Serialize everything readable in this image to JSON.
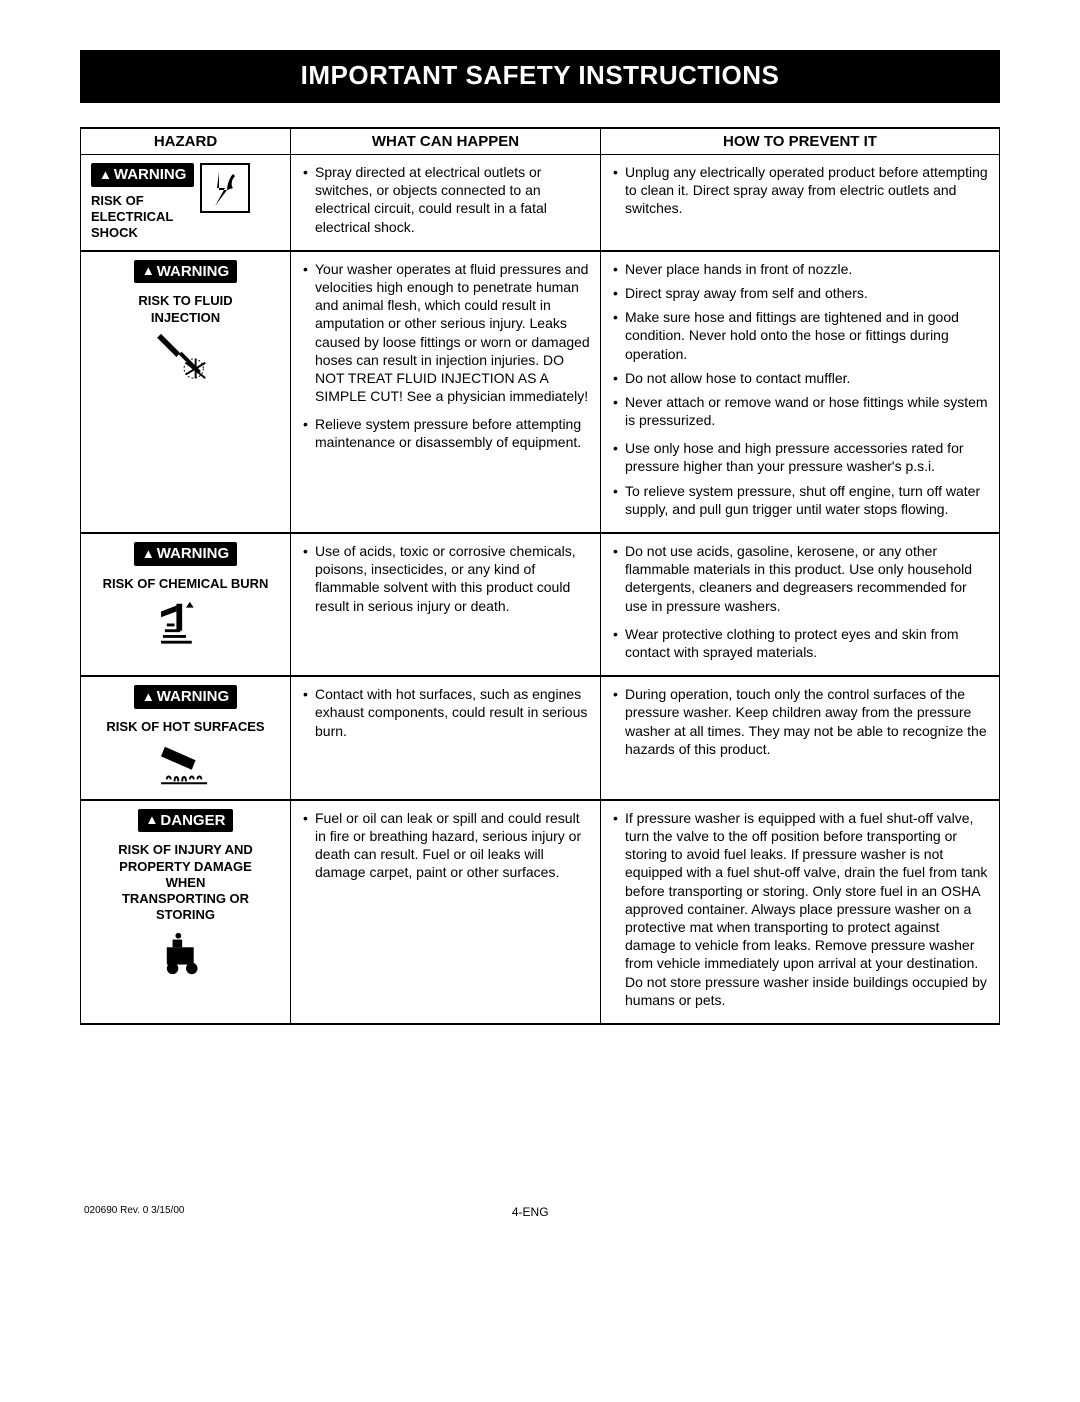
{
  "banner": {
    "title": "IMPORTANT SAFETY INSTRUCTIONS"
  },
  "headers": {
    "hazard": "HAZARD",
    "happen": "WHAT CAN HAPPEN",
    "prevent": "HOW TO PREVENT IT"
  },
  "badges": {
    "warning": "WARNING",
    "danger": "DANGER"
  },
  "rows": [
    {
      "title": "RISK OF\nELECTRICAL\nSHOCK",
      "layout": "side",
      "icon": "shock",
      "happen0": "Spray directed at electrical outlets or switches, or objects connected to an electrical circuit, could result in a fatal electrical shock.",
      "prevent0": "Unplug any electrically operated product before attempting to clean it. Direct spray away from electric outlets and switches."
    },
    {
      "title": "RISK TO FLUID\nINJECTION",
      "layout": "stack",
      "icon": "spray",
      "happen0": "Your washer operates at fluid pressures and velocities high enough to penetrate human and animal flesh, which could result in amputation or other serious injury.  Leaks caused by loose fittings or worn or damaged hoses can result in injection injuries. DO NOT TREAT FLUID INJECTION AS A SIMPLE CUT!  See a physician immediately!",
      "happen1": "Relieve system pressure before attempting maintenance or disassembly of equipment.",
      "prevent0": "Never place hands in front of nozzle.",
      "prevent1": "Direct spray away from self and others.",
      "prevent2": "Make sure hose and fittings are tightened and in good condition.  Never hold onto the hose or fittings during operation.",
      "prevent3": "Do not allow hose to contact muffler.",
      "prevent4": "Never attach or remove wand or hose fittings while system is pressurized.",
      "prevent5": "Use only hose and high pressure accessories rated for pressure higher than your pressure washer's p.s.i.",
      "prevent6": "To relieve system pressure, shut off  engine, turn off water supply, and pull gun trigger until water stops flowing."
    },
    {
      "title": "RISK OF CHEMICAL BURN",
      "layout": "stackwide",
      "icon": "chem",
      "happen0": "Use of acids, toxic or corrosive chemicals, poisons, insecticides, or any kind of flammable solvent with this product could result in serious injury or death.",
      "prevent0": "Do not use acids, gasoline, kerosene, or any other flammable materials in this product.  Use only household detergents, cleaners and degreasers recommended for use in pressure washers.",
      "prevent1": "Wear protective clothing to protect eyes and skin from contact with sprayed materials."
    },
    {
      "title": "RISK OF HOT SURFACES",
      "layout": "stackwide",
      "icon": "hot",
      "happen0": "Contact with hot surfaces, such as engines exhaust components, could result in serious burn.",
      "prevent0": "During operation, touch only the control surfaces of the pressure washer. Keep children away from the pressure washer at all times. They may not be able to recognize the hazards of this product."
    },
    {
      "title": "RISK OF INJURY AND\nPROPERTY DAMAGE\nWHEN\nTRANSPORTING OR\nSTORING",
      "badge": "danger",
      "layout": "stackwide",
      "icon": "transport",
      "happen0": "Fuel or oil can leak or spill and could result in fire or breathing hazard, serious injury or death can result. Fuel or oil leaks will damage carpet, paint or other surfaces.",
      "prevent0": "If pressure washer is equipped with a fuel shut-off valve, turn the valve to the off position before transporting or storing to avoid fuel leaks. If pressure washer is not equipped with a fuel shut-off valve, drain the fuel from tank before transporting or storing. Only store fuel in an OSHA approved container. Always place pressure washer on a protective mat when transporting to protect against damage to vehicle from leaks. Remove pressure washer from vehicle immediately upon arrival at your destination. Do not store pressure washer inside buildings occupied by humans or pets."
    }
  ],
  "footer": {
    "rev": "020690  Rev. 0    3/15/00",
    "page": "4-ENG"
  },
  "colors": {
    "bg": "#ffffff",
    "fg": "#000000",
    "banner_bg": "#000000",
    "banner_fg": "#ffffff"
  }
}
